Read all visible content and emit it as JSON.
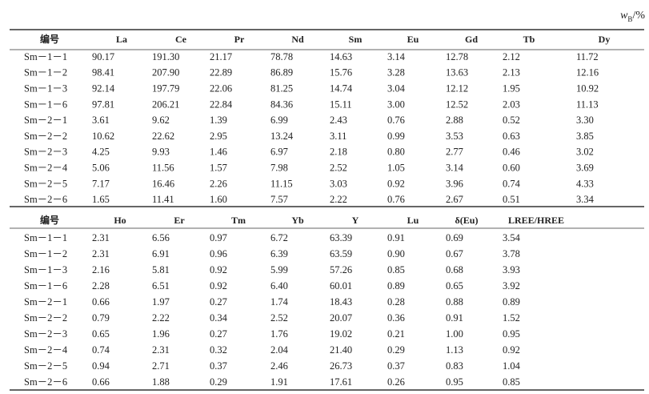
{
  "unit": {
    "symbol": "w",
    "subscript": "B",
    "suffix": "/%"
  },
  "table1": {
    "header": [
      "编号",
      "La",
      "Ce",
      "Pr",
      "Nd",
      "Sm",
      "Eu",
      "Gd",
      "Tb",
      "Dy"
    ],
    "rows": [
      [
        "Sm－1－1",
        "90.17",
        "191.30",
        "21.17",
        "78.78",
        "14.63",
        "3.14",
        "12.78",
        "2.12",
        "11.72"
      ],
      [
        "Sm－1－2",
        "98.41",
        "207.90",
        "22.89",
        "86.89",
        "15.76",
        "3.28",
        "13.63",
        "2.13",
        "12.16"
      ],
      [
        "Sm－1－3",
        "92.14",
        "197.79",
        "22.06",
        "81.25",
        "14.74",
        "3.04",
        "12.12",
        "1.95",
        "10.92"
      ],
      [
        "Sm－1－6",
        "97.81",
        "206.21",
        "22.84",
        "84.36",
        "15.11",
        "3.00",
        "12.52",
        "2.03",
        "11.13"
      ],
      [
        "Sm－2－1",
        "3.61",
        "9.62",
        "1.39",
        "6.99",
        "2.43",
        "0.76",
        "2.88",
        "0.52",
        "3.30"
      ],
      [
        "Sm－2－2",
        "10.62",
        "22.62",
        "2.95",
        "13.24",
        "3.11",
        "0.99",
        "3.53",
        "0.63",
        "3.85"
      ],
      [
        "Sm－2－3",
        "4.25",
        "9.93",
        "1.46",
        "6.97",
        "2.18",
        "0.80",
        "2.77",
        "0.46",
        "3.02"
      ],
      [
        "Sm－2－4",
        "5.06",
        "11.56",
        "1.57",
        "7.98",
        "2.52",
        "1.05",
        "3.14",
        "0.60",
        "3.69"
      ],
      [
        "Sm－2－5",
        "7.17",
        "16.46",
        "2.26",
        "11.15",
        "3.03",
        "0.92",
        "3.96",
        "0.74",
        "4.33"
      ],
      [
        "Sm－2－6",
        "1.65",
        "11.41",
        "1.60",
        "7.57",
        "2.22",
        "0.76",
        "2.67",
        "0.51",
        "3.34"
      ]
    ]
  },
  "table2": {
    "header": [
      "编号",
      "Ho",
      "Er",
      "Tm",
      "Yb",
      "Y",
      "Lu",
      "δ(Eu)",
      "LREE/HREE"
    ],
    "rows": [
      [
        "Sm－1－1",
        "2.31",
        "6.56",
        "0.97",
        "6.72",
        "63.39",
        "0.91",
        "0.69",
        "3.54"
      ],
      [
        "Sm－1－2",
        "2.31",
        "6.91",
        "0.96",
        "6.39",
        "63.59",
        "0.90",
        "0.67",
        "3.78"
      ],
      [
        "Sm－1－3",
        "2.16",
        "5.81",
        "0.92",
        "5.99",
        "57.26",
        "0.85",
        "0.68",
        "3.93"
      ],
      [
        "Sm－1－6",
        "2.28",
        "6.51",
        "0.92",
        "6.40",
        "60.01",
        "0.89",
        "0.65",
        "3.92"
      ],
      [
        "Sm－2－1",
        "0.66",
        "1.97",
        "0.27",
        "1.74",
        "18.43",
        "0.28",
        "0.88",
        "0.89"
      ],
      [
        "Sm－2－2",
        "0.79",
        "2.22",
        "0.34",
        "2.52",
        "20.07",
        "0.36",
        "0.91",
        "1.52"
      ],
      [
        "Sm－2－3",
        "0.65",
        "1.96",
        "0.27",
        "1.76",
        "19.02",
        "0.21",
        "1.00",
        "0.95"
      ],
      [
        "Sm－2－4",
        "0.74",
        "2.31",
        "0.32",
        "2.04",
        "21.40",
        "0.29",
        "1.13",
        "0.92"
      ],
      [
        "Sm－2－5",
        "0.94",
        "2.71",
        "0.37",
        "2.46",
        "26.73",
        "0.37",
        "0.83",
        "1.04"
      ],
      [
        "Sm－2－6",
        "0.66",
        "1.88",
        "0.29",
        "1.91",
        "17.61",
        "0.26",
        "0.95",
        "0.85"
      ]
    ]
  }
}
